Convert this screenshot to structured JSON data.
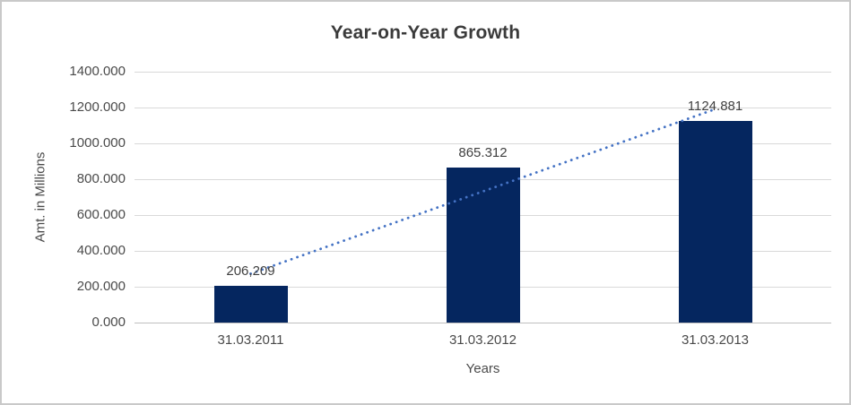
{
  "chart": {
    "title": "Year-on-Year Growth",
    "y_axis_title": "Amt. in Millions",
    "x_axis_title": "Years"
  },
  "chart_data": {
    "type": "bar",
    "title": "Year-on-Year Growth",
    "xlabel": "Years",
    "ylabel": "Amt. in Millions",
    "categories": [
      "31.03.2011",
      "31.03.2012",
      "31.03.2013"
    ],
    "values": [
      206.209,
      865.312,
      1124.881
    ],
    "data_labels": [
      "206,209",
      "865.312",
      "1124.881"
    ],
    "ylim": [
      0,
      1400
    ],
    "ytick_step": 200,
    "ytick_labels": [
      "0.000",
      "200.000",
      "400.000",
      "600.000",
      "800.000",
      "1000.000",
      "1200.000",
      "1400.000"
    ],
    "grid": true,
    "legend": "none",
    "trendline": {
      "type": "linear",
      "style": "dotted",
      "start_value": 272.8,
      "end_value": 1191.1
    },
    "colors": {
      "bar": "#05265f",
      "trendline": "#4472c4",
      "gridline": "#d9d9d9",
      "axis_line": "#bfbfbf",
      "tick_text": "#4a4a4a",
      "title_text": "#3b3b3b",
      "border": "#c9c9c9"
    }
  }
}
